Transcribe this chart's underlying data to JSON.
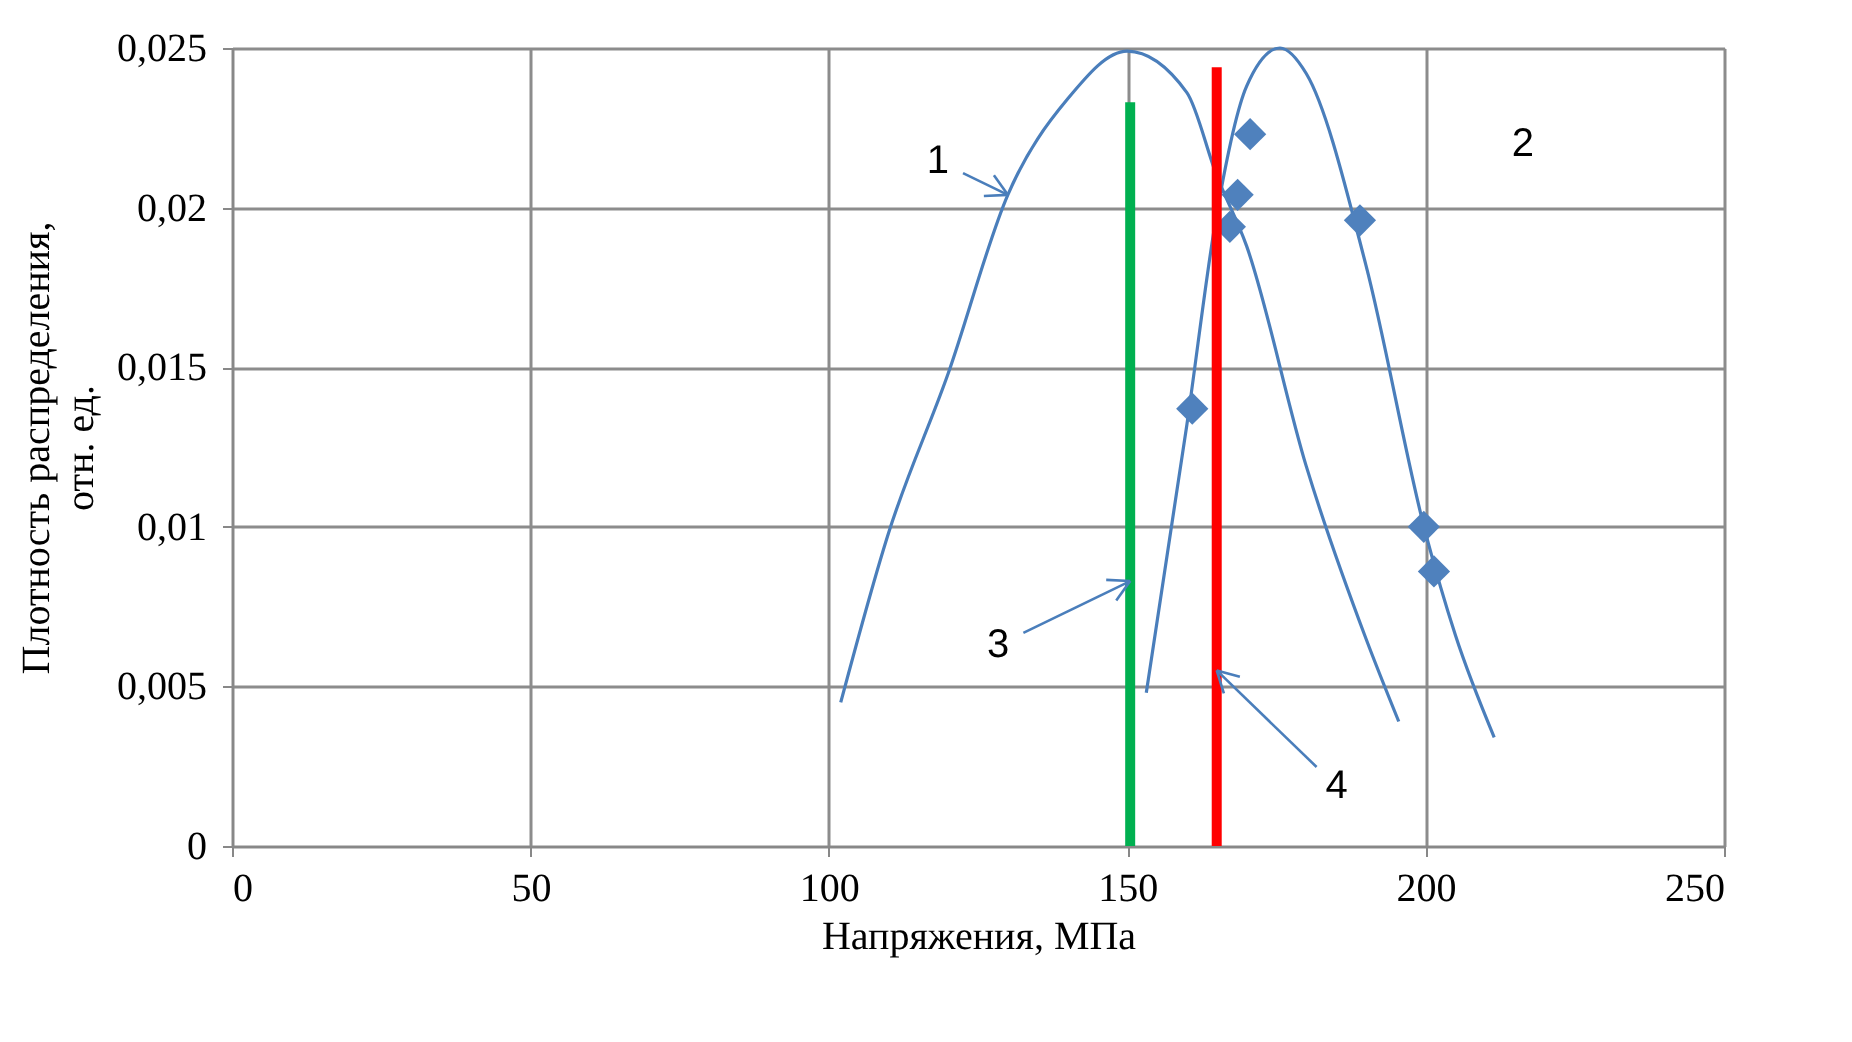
{
  "chart_data": {
    "type": "line",
    "xlabel": "Напряжения, МПа",
    "ylabel": "Плотность распределения, отн. ед.",
    "xlim": [
      0,
      250
    ],
    "xticks": [
      0,
      50,
      100,
      150,
      200,
      250
    ],
    "ylim": [
      0,
      0.025
    ],
    "yticks": [
      {
        "value": 0,
        "label": "0"
      },
      {
        "value": 0.005,
        "label": "0,005"
      },
      {
        "value": 0.01,
        "label": "0,01"
      },
      {
        "value": 0.015,
        "label": "0,015"
      },
      {
        "value": 0.02,
        "label": "0,02"
      },
      {
        "value": 0.025,
        "label": "0,025"
      }
    ],
    "grid": true,
    "series": [
      {
        "color": "#4a7ebb",
        "x": [
          102,
          110,
          120,
          130,
          140,
          150,
          160,
          165,
          170,
          180,
          190,
          195.5
        ],
        "values": [
          0.0045,
          0.0098,
          0.0148,
          0.0204,
          0.0234,
          0.0249,
          0.0236,
          0.021,
          0.0188,
          0.0119,
          0.0065,
          0.0039
        ]
      },
      {
        "color": "#4a7ebb",
        "x": [
          153.2,
          160,
          165,
          170,
          175.6,
          180,
          190,
          200,
          205,
          211.5
        ],
        "values": [
          0.0048,
          0.0132,
          0.0198,
          0.0238,
          0.025,
          0.0242,
          0.0182,
          0.0098,
          0.0066,
          0.0034
        ]
      },
      {
        "type": "scatter",
        "marker": "diamond",
        "color": "#4f81bd",
        "x": [
          160.9,
          167.2,
          168.5,
          170.6,
          189.0,
          199.7,
          201.4
        ],
        "values": [
          0.0137,
          0.0194,
          0.0204,
          0.0223,
          0.0196,
          0.01,
          0.0086
        ]
      },
      {
        "color": "#00b050",
        "x": [
          150.5,
          150.5
        ],
        "values": [
          0,
          0.0233
        ]
      },
      {
        "color": "#ff0000",
        "x": [
          165,
          165
        ],
        "values": [
          0,
          0.0244
        ]
      }
    ],
    "annotations": [
      {
        "text": "1",
        "x": 130,
        "y": 0.0204
      },
      "2",
      {
        "text": "3",
        "x": 150.5,
        "y": 0.0083
      },
      {
        "text": "4",
        "x": 165,
        "y": 0.0055
      }
    ]
  }
}
